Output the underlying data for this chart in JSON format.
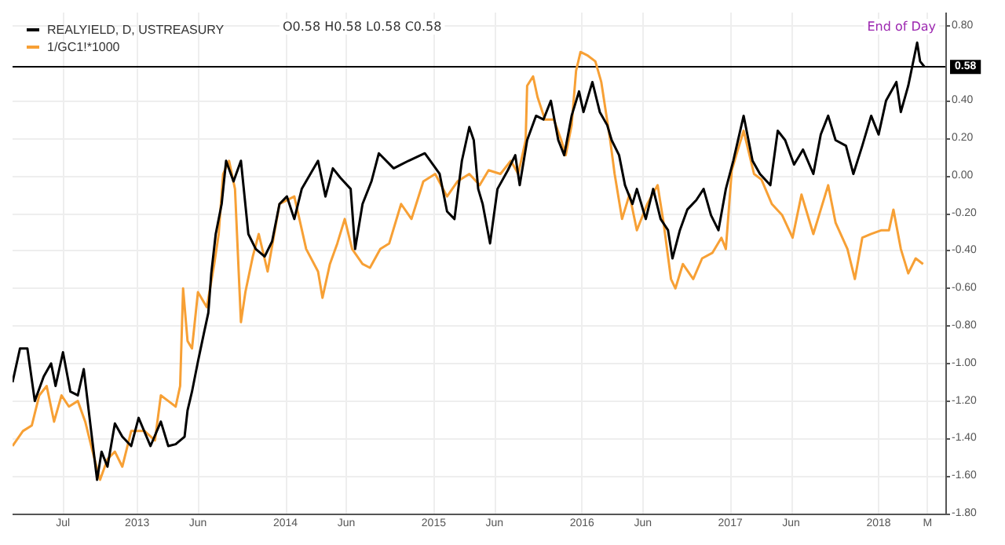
{
  "chart_data": {
    "type": "line",
    "annotations": [
      "O0.58 H0.58 L0.58 C0.58",
      "End of Day"
    ],
    "xlim": [
      2012.16,
      2018.45
    ],
    "xticks": [
      {
        "value": 2012.5,
        "label": "Jul"
      },
      2013,
      {
        "value": 2013.41,
        "label": "Jun"
      },
      2014,
      {
        "value": 2014.41,
        "label": "Jun"
      },
      2015,
      {
        "value": 2015.41,
        "label": "Jun"
      },
      2016,
      {
        "value": 2016.41,
        "label": "Jun"
      },
      2017,
      {
        "value": 2017.41,
        "label": "Jun"
      },
      2018,
      {
        "value": 2018.33,
        "label": "M"
      }
    ],
    "ylim": [
      -1.8,
      0.87
    ],
    "yticks": [
      {
        "value": -1.8,
        "label": "-1.80"
      },
      {
        "value": -1.6,
        "label": "-1.60"
      },
      {
        "value": -1.4,
        "label": "-1.40"
      },
      {
        "value": -1.2,
        "label": "-1.20"
      },
      {
        "value": -1,
        "label": "-1.00"
      },
      {
        "value": -0.8,
        "label": "-0.80"
      },
      {
        "value": -0.6,
        "label": "-0.60"
      },
      {
        "value": -0.4,
        "label": "-0.40"
      },
      {
        "value": -0.2,
        "label": "-0.20"
      },
      {
        "value": 0,
        "label": "0.00"
      },
      {
        "value": 0.2,
        "label": "0.20"
      },
      {
        "value": 0.4,
        "label": "0.40"
      },
      {
        "value": 0.8,
        "label": "0.80"
      }
    ],
    "grid": true,
    "legend": "top left",
    "marker": "none",
    "line_style": "solid",
    "ref_lines": [
      {
        "axis": "y",
        "value": 0.58,
        "label": "0.58",
        "color": "#000000"
      }
    ],
    "series": [
      {
        "name": "REALYIELD, D, USTREASURY",
        "color": "#000000",
        "x": [
          2012.16,
          2012.21,
          2012.26,
          2012.31,
          2012.37,
          2012.42,
          2012.45,
          2012.5,
          2012.55,
          2012.6,
          2012.64,
          2012.69,
          2012.73,
          2012.76,
          2012.8,
          2012.85,
          2012.9,
          2012.96,
          2013.01,
          2013.09,
          2013.16,
          2013.21,
          2013.26,
          2013.32,
          2013.34,
          2013.37,
          2013.41,
          2013.45,
          2013.48,
          2013.5,
          2013.53,
          2013.57,
          2013.6,
          2013.65,
          2013.7,
          2013.75,
          2013.8,
          2013.86,
          2013.91,
          2013.96,
          2014.01,
          2014.06,
          2014.11,
          2014.22,
          2014.27,
          2014.32,
          2014.37,
          2014.44,
          2014.47,
          2014.52,
          2014.58,
          2014.63,
          2014.73,
          2014.83,
          2014.94,
          2015.04,
          2015.09,
          2015.14,
          2015.19,
          2015.24,
          2015.27,
          2015.3,
          2015.33,
          2015.38,
          2015.43,
          2015.5,
          2015.55,
          2015.58,
          2015.63,
          2015.69,
          2015.74,
          2015.79,
          2015.84,
          2015.88,
          2015.93,
          2015.98,
          2016.01,
          2016.07,
          2016.12,
          2016.17,
          2016.2,
          2016.25,
          2016.29,
          2016.34,
          2016.37,
          2016.43,
          2016.48,
          2016.53,
          2016.58,
          2016.61,
          2016.66,
          2016.71,
          2016.77,
          2016.82,
          2016.87,
          2016.92,
          2016.97,
          2017.02,
          2017.09,
          2017.15,
          2017.2,
          2017.27,
          2017.32,
          2017.37,
          2017.43,
          2017.49,
          2017.56,
          2017.61,
          2017.66,
          2017.71,
          2017.78,
          2017.83,
          2017.89,
          2017.95,
          2018,
          2018.05,
          2018.12,
          2018.15,
          2018.2,
          2018.26,
          2018.28,
          2018.31
        ],
        "values": [
          -1.1,
          -0.92,
          -0.92,
          -1.2,
          -1.07,
          -1,
          -1.12,
          -0.94,
          -1.15,
          -1.17,
          -1.03,
          -1.36,
          -1.62,
          -1.47,
          -1.55,
          -1.32,
          -1.39,
          -1.44,
          -1.29,
          -1.44,
          -1.31,
          -1.44,
          -1.43,
          -1.39,
          -1.25,
          -1.15,
          -0.99,
          -0.84,
          -0.73,
          -0.52,
          -0.31,
          -0.15,
          0.08,
          -0.03,
          0.08,
          -0.31,
          -0.39,
          -0.43,
          -0.35,
          -0.15,
          -0.11,
          -0.23,
          -0.07,
          0.08,
          -0.11,
          0.04,
          -0.01,
          -0.07,
          -0.39,
          -0.15,
          -0.03,
          0.12,
          0.04,
          0.08,
          0.12,
          0.01,
          -0.19,
          -0.23,
          0.08,
          0.26,
          0.19,
          -0.07,
          -0.15,
          -0.36,
          -0.07,
          0.03,
          0.11,
          -0.05,
          0.19,
          0.32,
          0.3,
          0.4,
          0.19,
          0.11,
          0.32,
          0.45,
          0.34,
          0.5,
          0.34,
          0.27,
          0.19,
          0.11,
          -0.05,
          -0.15,
          -0.07,
          -0.23,
          -0.07,
          -0.23,
          -0.29,
          -0.44,
          -0.29,
          -0.18,
          -0.13,
          -0.07,
          -0.21,
          -0.29,
          -0.07,
          0.08,
          0.32,
          0.08,
          0.01,
          -0.05,
          0.24,
          0.19,
          0.06,
          0.14,
          0.01,
          0.22,
          0.32,
          0.19,
          0.16,
          0.01,
          0.16,
          0.32,
          0.22,
          0.4,
          0.5,
          0.34,
          0.48,
          0.71,
          0.61,
          0.58
        ]
      },
      {
        "name": "1/GC1!*1000",
        "color": "#f7a035",
        "x": [
          2012.16,
          2012.23,
          2012.29,
          2012.34,
          2012.39,
          2012.44,
          2012.49,
          2012.54,
          2012.6,
          2012.65,
          2012.7,
          2012.75,
          2012.8,
          2012.85,
          2012.9,
          2012.96,
          2013.05,
          2013.12,
          2013.16,
          2013.21,
          2013.26,
          2013.29,
          2013.31,
          2013.34,
          2013.37,
          2013.41,
          2013.47,
          2013.52,
          2013.55,
          2013.58,
          2013.62,
          2013.66,
          2013.7,
          2013.73,
          2013.78,
          2013.82,
          2013.88,
          2013.96,
          2014.06,
          2014.14,
          2014.22,
          2014.25,
          2014.3,
          2014.35,
          2014.4,
          2014.45,
          2014.52,
          2014.57,
          2014.64,
          2014.7,
          2014.78,
          2014.85,
          2014.93,
          2015.01,
          2015.09,
          2015.16,
          2015.24,
          2015.31,
          2015.37,
          2015.45,
          2015.52,
          2015.57,
          2015.62,
          2015.63,
          2015.67,
          2015.7,
          2015.75,
          2015.81,
          2015.86,
          2015.89,
          2015.93,
          2015.96,
          2015.99,
          2016.04,
          2016.09,
          2016.13,
          2016.19,
          2016.22,
          2016.27,
          2016.32,
          2016.37,
          2016.44,
          2016.51,
          2016.55,
          2016.6,
          2016.63,
          2016.68,
          2016.75,
          2016.81,
          2016.88,
          2016.94,
          2016.97,
          2017.01,
          2017.04,
          2017.09,
          2017.16,
          2017.21,
          2017.28,
          2017.35,
          2017.42,
          2017.48,
          2017.56,
          2017.61,
          2017.66,
          2017.71,
          2017.79,
          2017.84,
          2017.89,
          2017.95,
          2018.02,
          2018.07,
          2018.1,
          2018.15,
          2018.2,
          2018.25,
          2018.3
        ],
        "values": [
          -1.44,
          -1.36,
          -1.33,
          -1.17,
          -1.12,
          -1.31,
          -1.17,
          -1.23,
          -1.2,
          -1.31,
          -1.47,
          -1.62,
          -1.51,
          -1.47,
          -1.55,
          -1.36,
          -1.36,
          -1.41,
          -1.17,
          -1.2,
          -1.23,
          -1.12,
          -0.6,
          -0.88,
          -0.92,
          -0.62,
          -0.7,
          -0.47,
          -0.31,
          0.01,
          0.08,
          -0.07,
          -0.78,
          -0.62,
          -0.43,
          -0.31,
          -0.51,
          -0.15,
          -0.11,
          -0.39,
          -0.51,
          -0.65,
          -0.47,
          -0.36,
          -0.23,
          -0.39,
          -0.47,
          -0.49,
          -0.39,
          -0.36,
          -0.15,
          -0.23,
          -0.03,
          0.01,
          -0.11,
          -0.03,
          0.01,
          -0.05,
          0.03,
          0.01,
          0.08,
          0.01,
          0.19,
          0.48,
          0.53,
          0.42,
          0.3,
          0.3,
          0.19,
          0.11,
          0.27,
          0.56,
          0.66,
          0.64,
          0.61,
          0.5,
          0.19,
          0.01,
          -0.23,
          -0.1,
          -0.29,
          -0.15,
          -0.05,
          -0.25,
          -0.55,
          -0.6,
          -0.47,
          -0.55,
          -0.44,
          -0.41,
          -0.33,
          -0.39,
          0.03,
          0.11,
          0.24,
          0.01,
          -0.02,
          -0.15,
          -0.21,
          -0.33,
          -0.1,
          -0.31,
          -0.18,
          -0.05,
          -0.25,
          -0.39,
          -0.55,
          -0.33,
          -0.31,
          -0.29,
          -0.29,
          -0.18,
          -0.39,
          -0.52,
          -0.44,
          -0.47
        ]
      }
    ]
  }
}
